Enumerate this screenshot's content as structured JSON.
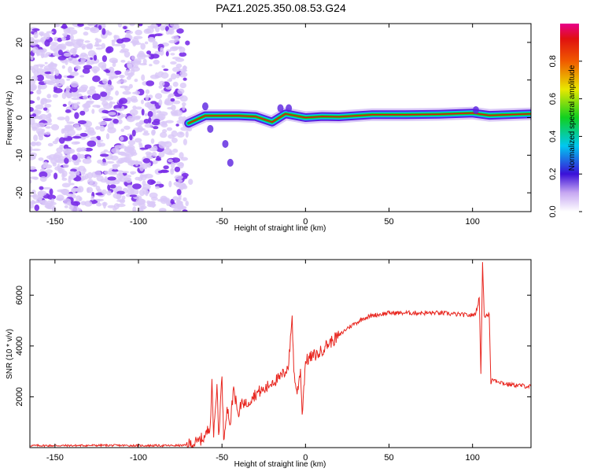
{
  "figure_title": "PAZ1.2025.350.08.53.G24",
  "colors": {
    "snr_line": "#e8261f",
    "axis": "#000000",
    "scatter": "#7a2ee8",
    "scatter_light": "#d9c8f7"
  },
  "chart_data": [
    {
      "type": "heatmap",
      "title": "",
      "xlabel": "Height of straight line (km)",
      "ylabel": "Frequency (Hz)",
      "xlim": [
        -165,
        135
      ],
      "ylim": [
        -25,
        25
      ],
      "xticks": [
        -150,
        -100,
        -50,
        0,
        50,
        100
      ],
      "yticks": [
        -20,
        -10,
        0,
        10,
        20
      ],
      "noise_region_x": [
        -165,
        -72
      ],
      "signal_band": [
        {
          "x": -70,
          "y": -1.5
        },
        {
          "x": -60,
          "y": 0.5
        },
        {
          "x": -50,
          "y": 0.5
        },
        {
          "x": -40,
          "y": 0.5
        },
        {
          "x": -30,
          "y": 0.3
        },
        {
          "x": -20,
          "y": -1.2
        },
        {
          "x": -12,
          "y": 1.0
        },
        {
          "x": 0,
          "y": 0.0
        },
        {
          "x": 10,
          "y": 0.3
        },
        {
          "x": 20,
          "y": 0.2
        },
        {
          "x": 40,
          "y": 0.8
        },
        {
          "x": 60,
          "y": 0.8
        },
        {
          "x": 80,
          "y": 0.9
        },
        {
          "x": 100,
          "y": 1.2
        },
        {
          "x": 110,
          "y": 0.6
        },
        {
          "x": 135,
          "y": 1.0
        }
      ],
      "colorbar": {
        "label": "Normalized spectral amplitude",
        "ticks": [
          "0.0",
          "0.2",
          "0.4",
          "0.6",
          "0.8"
        ],
        "range": [
          0,
          1
        ]
      }
    },
    {
      "type": "line",
      "title": "",
      "xlabel": "Height of straight line (km)",
      "ylabel": "SNR (10 * v/v)",
      "xlim": [
        -165,
        135
      ],
      "ylim": [
        0,
        7400
      ],
      "xticks": [
        -150,
        -100,
        -50,
        0,
        50,
        100
      ],
      "yticks": [
        2000,
        4000,
        6000
      ],
      "series": [
        {
          "name": "SNR",
          "points": [
            [
              -165,
              80
            ],
            [
              -140,
              80
            ],
            [
              -120,
              90
            ],
            [
              -100,
              80
            ],
            [
              -80,
              80
            ],
            [
              -72,
              90
            ],
            [
              -65,
              200
            ],
            [
              -60,
              450
            ],
            [
              -57,
              900
            ],
            [
              -56,
              2700
            ],
            [
              -55,
              400
            ],
            [
              -53,
              2500
            ],
            [
              -52,
              500
            ],
            [
              -50,
              2800
            ],
            [
              -49,
              300
            ],
            [
              -47,
              1600
            ],
            [
              -45,
              900
            ],
            [
              -43,
              2400
            ],
            [
              -41,
              1500
            ],
            [
              -40,
              1200
            ],
            [
              -38,
              1900
            ],
            [
              -36,
              1700
            ],
            [
              -34,
              1800
            ],
            [
              -32,
              2000
            ],
            [
              -28,
              2200
            ],
            [
              -24,
              2300
            ],
            [
              -20,
              2600
            ],
            [
              -16,
              2700
            ],
            [
              -12,
              3000
            ],
            [
              -10,
              3300
            ],
            [
              -8,
              5200
            ],
            [
              -7,
              3000
            ],
            [
              -5,
              2100
            ],
            [
              -3,
              3100
            ],
            [
              -2,
              1300
            ],
            [
              0,
              3400
            ],
            [
              4,
              3600
            ],
            [
              8,
              3700
            ],
            [
              12,
              4000
            ],
            [
              16,
              4200
            ],
            [
              20,
              4400
            ],
            [
              25,
              4700
            ],
            [
              30,
              4900
            ],
            [
              35,
              5100
            ],
            [
              40,
              5200
            ],
            [
              50,
              5300
            ],
            [
              60,
              5300
            ],
            [
              70,
              5300
            ],
            [
              80,
              5300
            ],
            [
              90,
              5250
            ],
            [
              100,
              5200
            ],
            [
              102,
              5300
            ],
            [
              104,
              5900
            ],
            [
              105,
              2900
            ],
            [
              106,
              7300
            ],
            [
              107,
              5200
            ],
            [
              110,
              5250
            ],
            [
              111,
              2500
            ],
            [
              112,
              2700
            ],
            [
              120,
              2500
            ],
            [
              135,
              2400
            ]
          ]
        }
      ]
    }
  ]
}
